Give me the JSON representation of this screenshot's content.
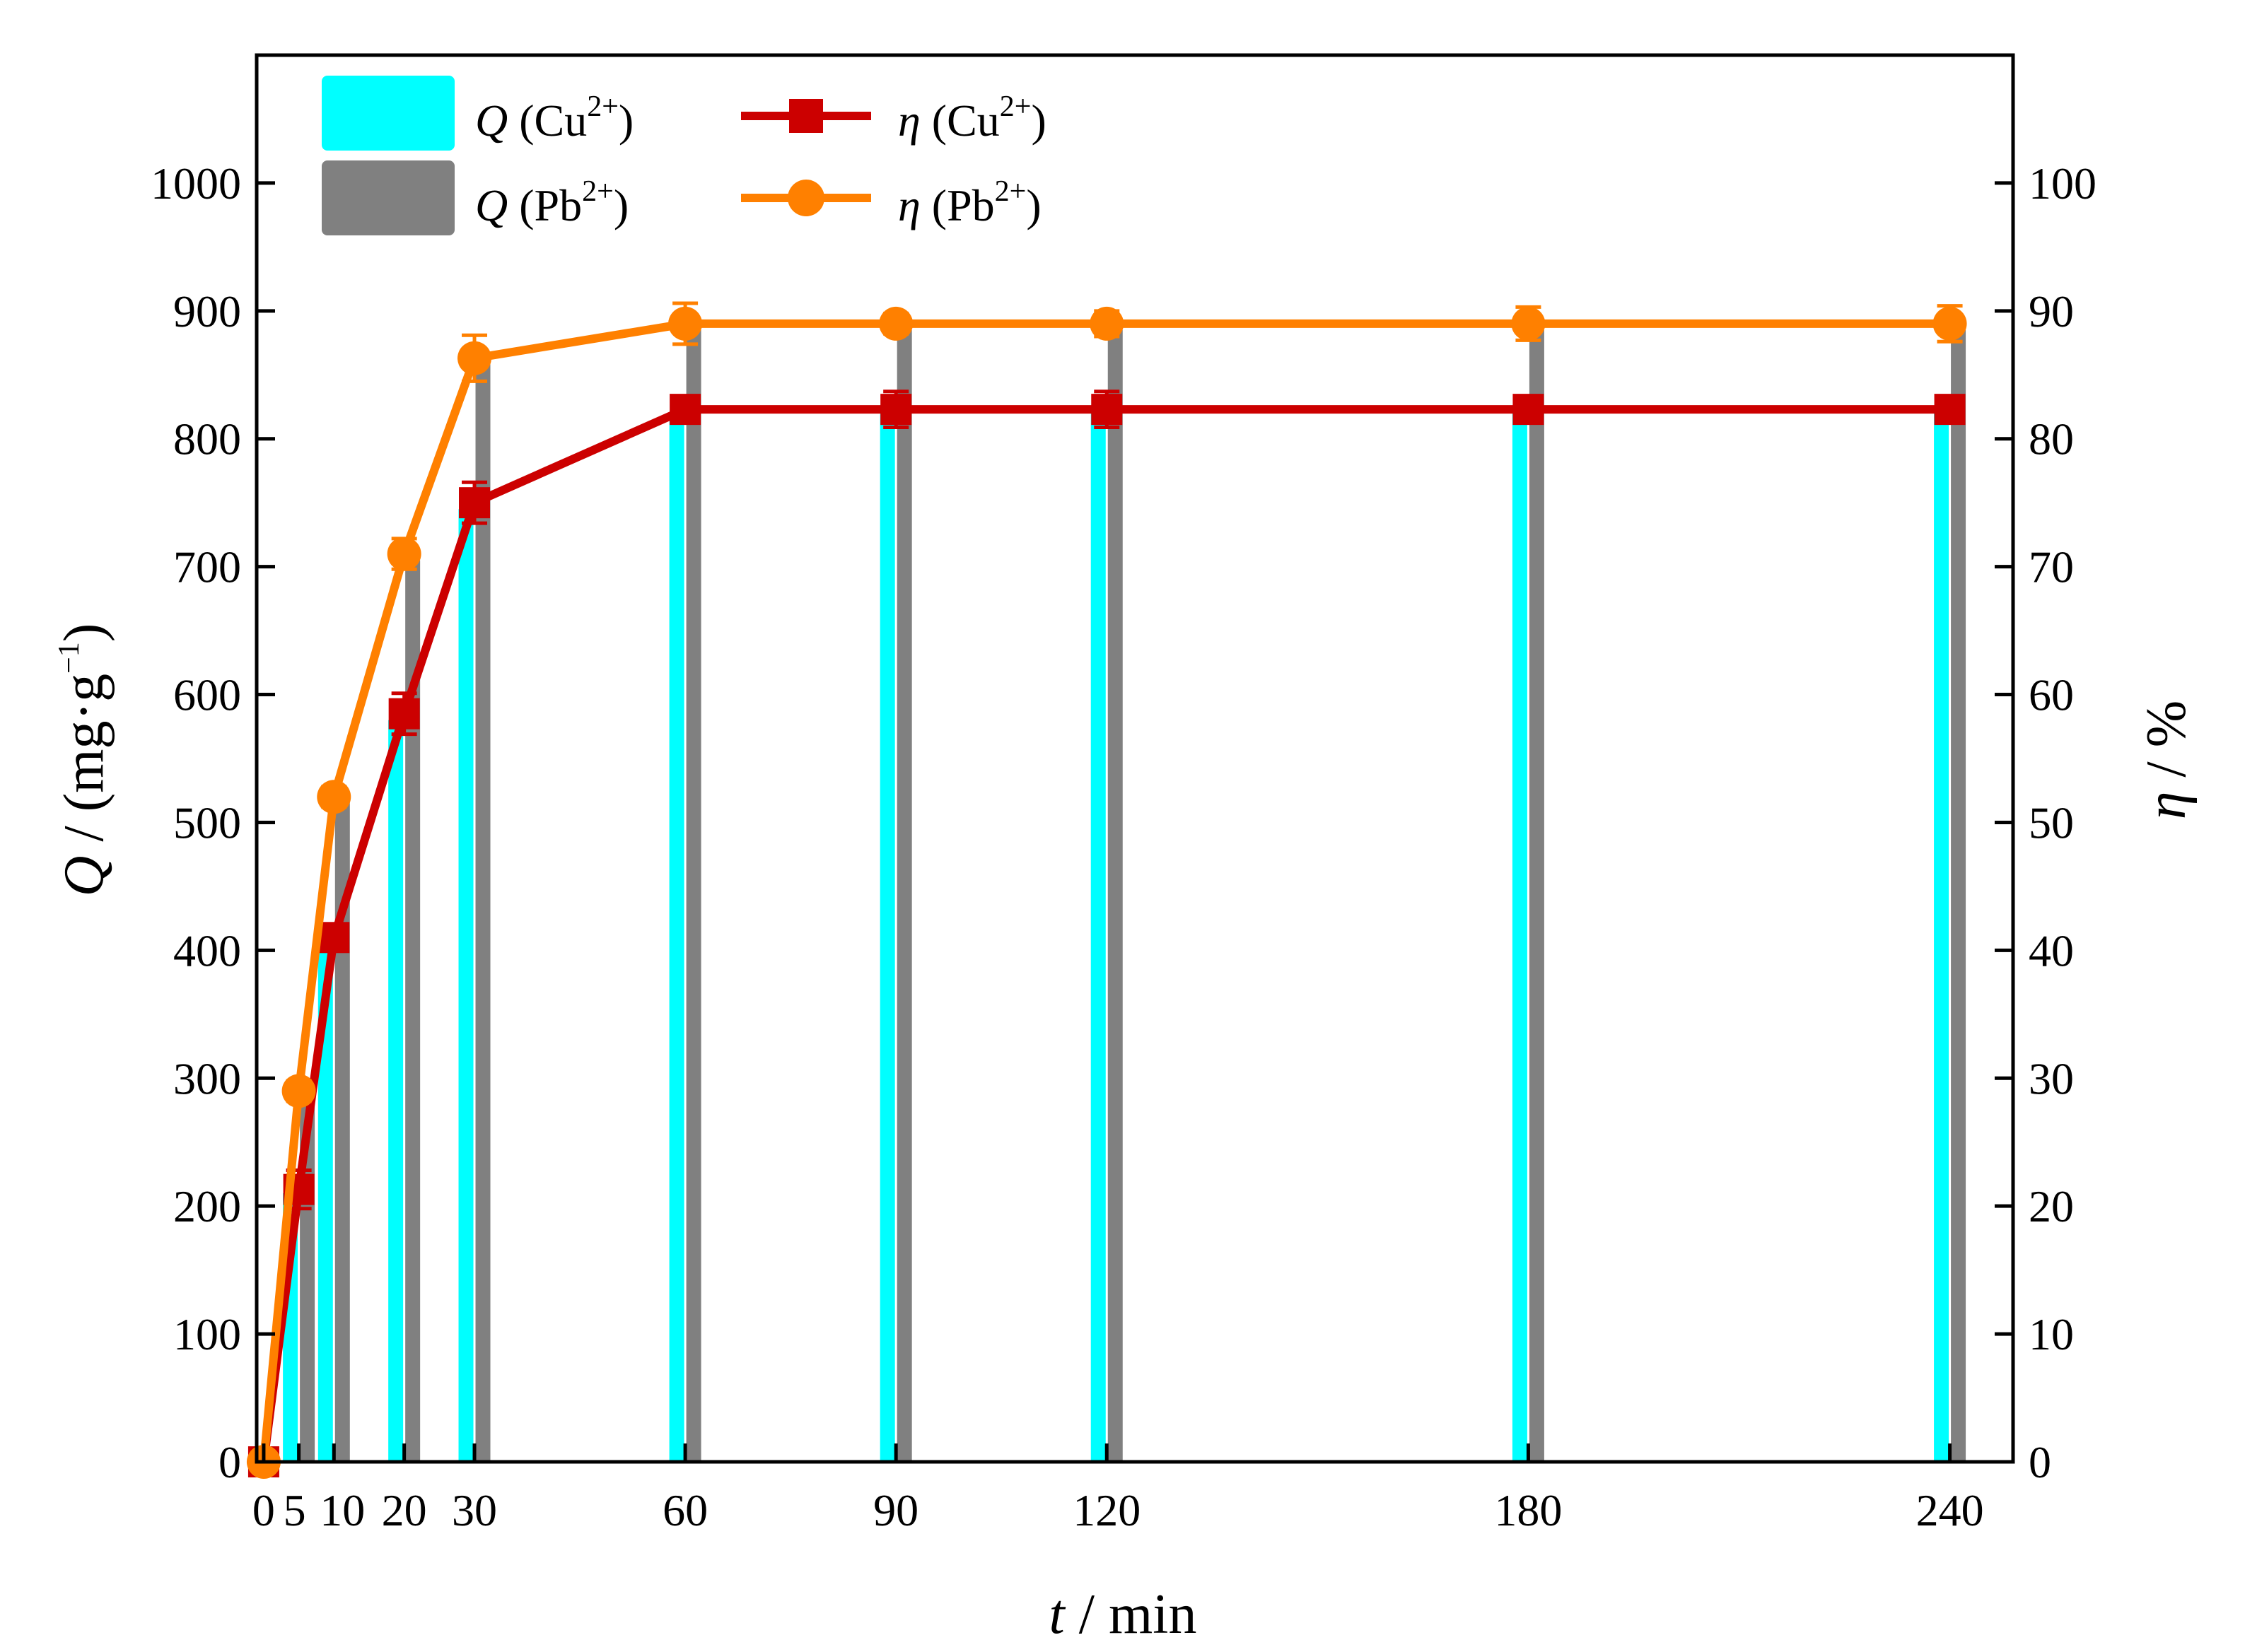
{
  "chart_data": {
    "type": "bar",
    "xlabel_var": "t",
    "xlabel_unit": " / min",
    "ylabel_var": "Q",
    "ylabel_unit": " / (mg·g",
    "ylabel_sup": "−1",
    "ylabel_close": ")",
    "y2label_var": "η",
    "y2label_unit": " / %",
    "x_ticks": [
      0,
      5,
      10,
      20,
      30,
      60,
      90,
      120,
      180,
      240
    ],
    "x_tick_labels": [
      "0",
      "5",
      "10",
      "20",
      "30",
      "60",
      "90",
      "120",
      "180",
      "240"
    ],
    "xlim": [
      -1,
      249
    ],
    "ylim": [
      0,
      1100
    ],
    "y_ticks": [
      0,
      100,
      200,
      300,
      400,
      500,
      600,
      700,
      800,
      900,
      1000
    ],
    "y2lim": [
      0,
      110
    ],
    "y2_ticks": [
      0,
      10,
      20,
      30,
      40,
      50,
      60,
      70,
      80,
      90,
      100
    ],
    "categories": [
      5,
      10,
      20,
      30,
      60,
      90,
      120,
      180,
      240
    ],
    "bar_series": [
      {
        "name": "Q (Cu2+)",
        "label_var": "Q",
        "label_ion": " (Cu",
        "label_sup": "2+",
        "label_close": ")",
        "color": "#00FFFF",
        "values": [
          210,
          410,
          580,
          745,
          820,
          820,
          820,
          820,
          820
        ]
      },
      {
        "name": "Q (Pb2+)",
        "label_var": "Q",
        "label_ion": " (Pb",
        "label_sup": "2+",
        "label_close": ")",
        "color": "#808080",
        "values": [
          280,
          520,
          705,
          860,
          885,
          885,
          885,
          885,
          885
        ]
      }
    ],
    "line_series": [
      {
        "name": "η (Cu2+)",
        "label_var": "η",
        "label_ion": " (Cu",
        "label_sup": "2+",
        "label_close": ")",
        "color": "#CC0000",
        "marker": "square",
        "x": [
          0,
          5,
          10,
          20,
          30,
          60,
          90,
          120,
          180,
          240
        ],
        "y": [
          0,
          21.3,
          41,
          58.5,
          75,
          82.3,
          82.3,
          82.3,
          82.3,
          82.3
        ],
        "err": [
          0,
          1.5,
          0.8,
          1.6,
          1.6,
          0.8,
          1.4,
          1.4,
          0.8,
          0.8
        ]
      },
      {
        "name": "η (Pb2+)",
        "label_var": "η",
        "label_ion": " (Pb",
        "label_sup": "2+",
        "label_close": ")",
        "color": "#FF8000",
        "marker": "circle",
        "x": [
          0,
          5,
          10,
          20,
          30,
          60,
          90,
          120,
          180,
          240
        ],
        "y": [
          0,
          29,
          52,
          71,
          86.3,
          89,
          89,
          89,
          89,
          89
        ],
        "err": [
          0,
          0.8,
          0.8,
          1.2,
          1.8,
          1.6,
          0.8,
          1.0,
          1.3,
          1.4
        ]
      }
    ]
  }
}
